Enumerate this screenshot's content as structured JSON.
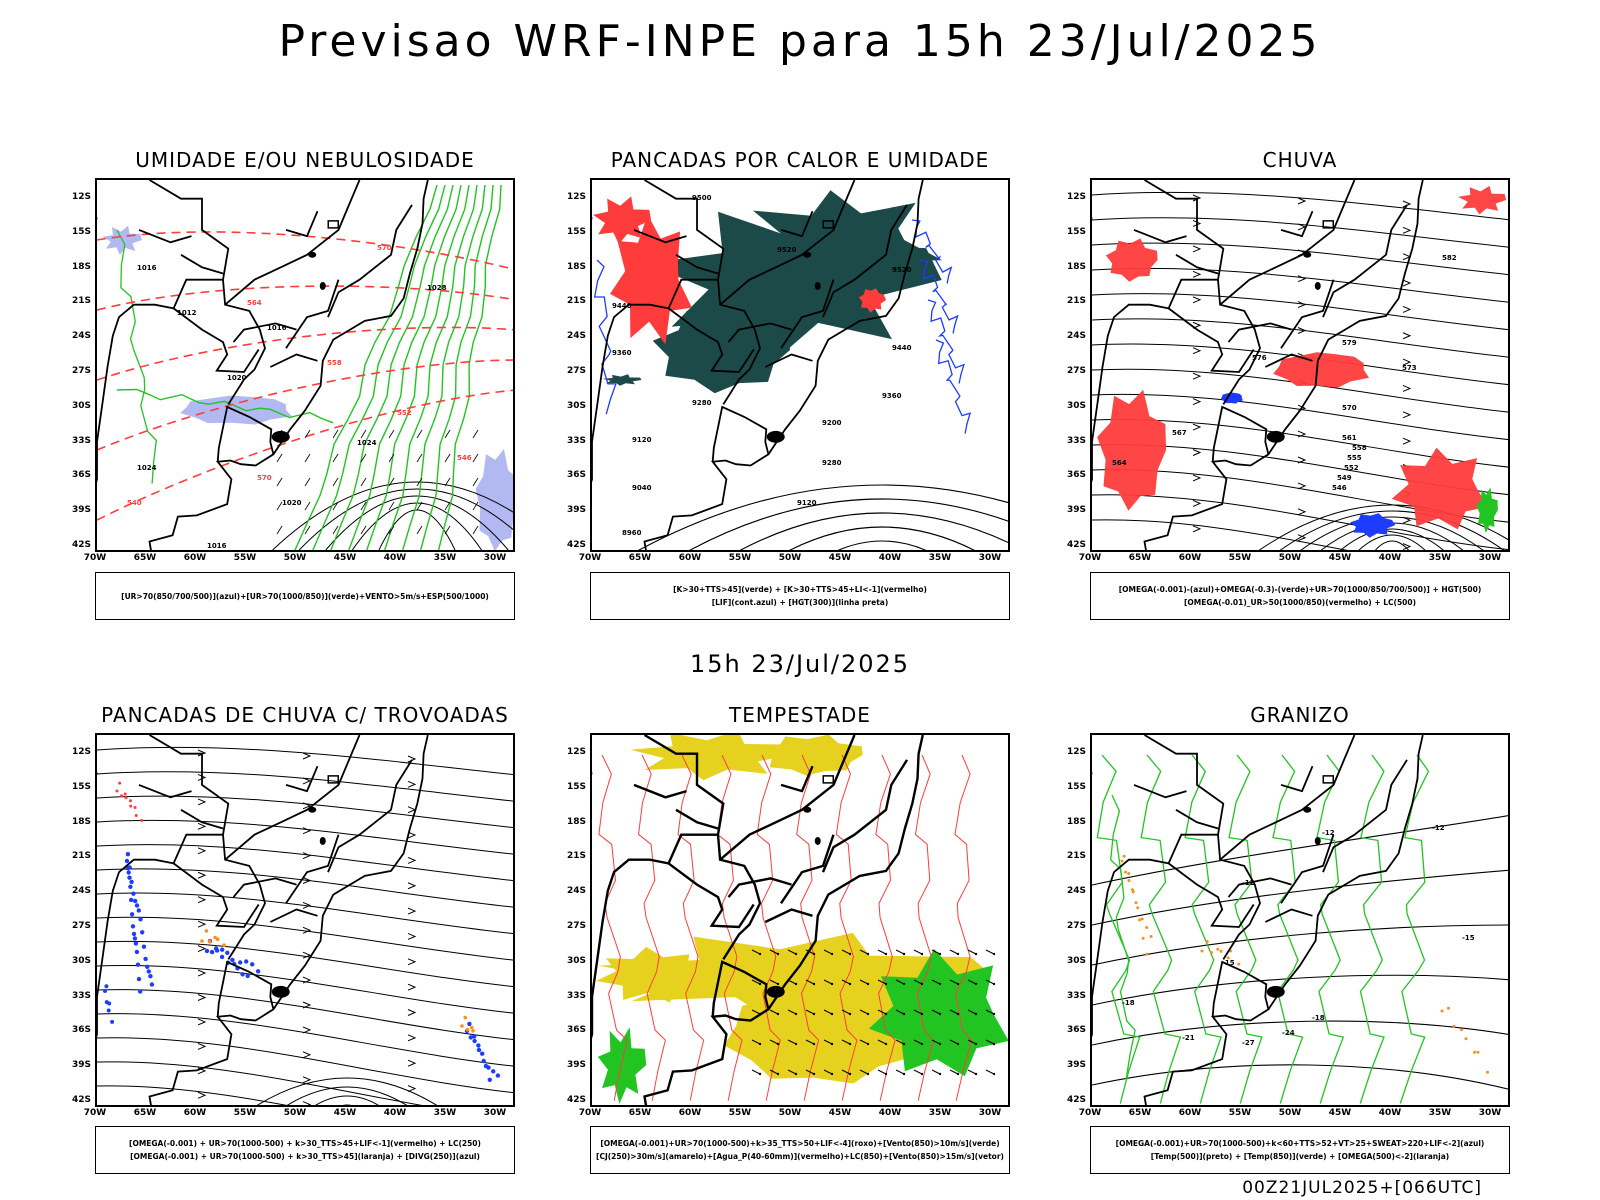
{
  "header": {
    "title": "Previsao WRF-INPE  para 15h 23/Jul/2025",
    "mid_date": "15h 23/Jul/2025",
    "run_code": "00Z21JUL2025+[066UTC]"
  },
  "axes": {
    "lat_labels": [
      "12S",
      "15S",
      "18S",
      "21S",
      "24S",
      "27S",
      "30S",
      "33S",
      "36S",
      "39S",
      "42S"
    ],
    "lon_labels": [
      "70W",
      "65W",
      "60W",
      "55W",
      "50W",
      "45W",
      "40W",
      "35W",
      "30W"
    ]
  },
  "colors": {
    "green": "#22c422",
    "red": "#ff3c3c",
    "blue": "#1e3cff",
    "lavender": "#aab0f0",
    "darkteal": "#1b4a48",
    "yellow": "#e6d21e",
    "orange": "#ff8c1e"
  },
  "panels": [
    {
      "id": "umidade",
      "title": "UMIDADE E/OU NEBULOSIDADE",
      "legend": [
        "[UR>70(850/700/500)](azul)+[UR>70(1000/850)](verde)+VENTO>5m/s+ESP(500/1000)"
      ],
      "labels": [
        "1016",
        "1012",
        "1016",
        "1020",
        "1024",
        "1024",
        "1020",
        "1016",
        "1028",
        "1020",
        "1024",
        "570",
        "564",
        "558",
        "552",
        "546",
        "540"
      ]
    },
    {
      "id": "pancadas-calor",
      "title": "PANCADAS POR CALOR E UMIDADE",
      "legend": [
        "[K>30+TTS>45](verde) + [K>30+TTS>45+LI<-1](vermelho)",
        "[LIF](cont.azul) + [HGT(300)](linha preta)"
      ],
      "labels": [
        "9500",
        "9520",
        "9520",
        "9440",
        "9360",
        "9280",
        "9200",
        "9120",
        "9040",
        "8960",
        "9440",
        "9360",
        "9280",
        "9120"
      ]
    },
    {
      "id": "chuva",
      "title": "CHUVA",
      "legend": [
        "[OMEGA(-0.001)-(azul)+OMEGA(-0.3)-(verde)+UR>70(1000/850/700/500)] + HGT(500)",
        "[OMEGA(-0.01)_UR>50(1000/850)(vermelho) + LC(500)"
      ],
      "labels": [
        "582",
        "579",
        "576",
        "573",
        "570",
        "567",
        "564",
        "561",
        "558",
        "555",
        "552",
        "549",
        "546"
      ]
    },
    {
      "id": "pancadas-trovoadas",
      "title": "PANCADAS DE CHUVA C/ TROVOADAS",
      "legend": [
        "[OMEGA(-0.001) + UR>70(1000-500) + k>30_TTS>45+LIF<-1](vermelho) + LC(250)",
        "[OMEGA(-0.001) + UR>70(1000-500) + k>30_TTS>45](laranja) + [DIVG(250)](azul)"
      ],
      "labels": []
    },
    {
      "id": "tempestade",
      "title": "TEMPESTADE",
      "legend": [
        "[OMEGA(-0.001)+UR>70(1000-500)+k>35_TTS>50+LIF<-4](roxo)+[Vento(850)>10m/s](verde)",
        "[CJ(250)>30m/s](amarelo)+[Agua_P(40-60mm)](vermelho)+LC(850)+[Vento(850)>15m/s](vetor)"
      ],
      "labels": []
    },
    {
      "id": "granizo",
      "title": "GRANIZO",
      "legend": [
        "[OMEGA(-0.001)+UR>70(1000-500)+k<60+TTS>52+VT>25+SWEAT>220+LIF<-2](azul)",
        "[Temp(500)](preto) + [Temp(850)](verde) + [OMEGA(500)<-2](laranja)"
      ],
      "labels": [
        "-12",
        "-12",
        "-12",
        "-15",
        "-15",
        "-18",
        "-18",
        "-21",
        "-24",
        "-27"
      ]
    }
  ]
}
